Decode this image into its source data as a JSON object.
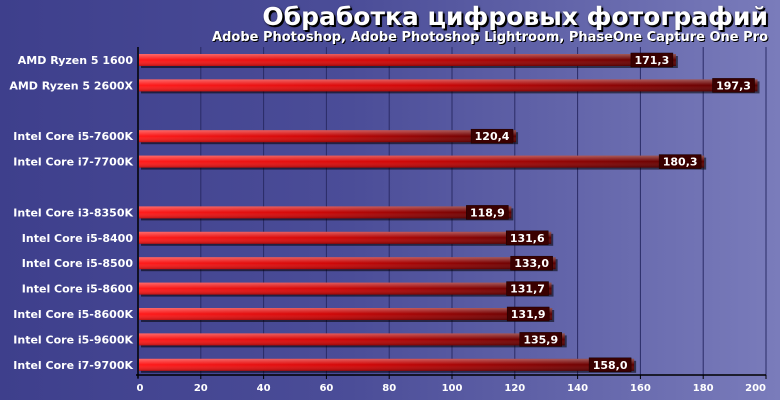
{
  "chart_data": {
    "type": "bar",
    "orientation": "horizontal",
    "title": "Обработка цифровых фотографий",
    "subtitle": "Adobe Photoshop, Adobe Photoshop Lightroom, PhaseOne Capture One Pro",
    "xlabel": "",
    "ylabel": "",
    "xlim": [
      0,
      200
    ],
    "x_ticks": [
      0,
      20,
      40,
      60,
      80,
      100,
      120,
      140,
      160,
      180,
      200
    ],
    "grid": true,
    "groups": [
      {
        "categories": [
          "AMD Ryzen 5 1600",
          "AMD Ryzen 5 2600X"
        ],
        "values": [
          171.3,
          197.3
        ],
        "labels": [
          "171,3",
          "197,3"
        ]
      },
      {
        "categories": [
          "Intel Core i5-7600K",
          "Intel Core i7-7700K"
        ],
        "values": [
          120.4,
          180.3
        ],
        "labels": [
          "120,4",
          "180,3"
        ]
      },
      {
        "categories": [
          "Intel Core i3-8350K",
          "Intel Core i5-8400",
          "Intel Core i5-8500",
          "Intel Core i5-8600",
          "Intel Core i5-8600K",
          "Intel Core i5-9600K",
          "Intel Core i7-9700K"
        ],
        "values": [
          118.9,
          131.6,
          133.0,
          131.7,
          131.9,
          135.9,
          158.0
        ],
        "labels": [
          "118,9",
          "131,6",
          "133,0",
          "131,7",
          "131,9",
          "135,9",
          "158,0"
        ]
      }
    ],
    "colors": {
      "bar_start": "#ff1a1a",
      "bar_end": "#5a0000",
      "background_start": "#3e3f8c",
      "background_end": "#7a7cbb",
      "grid": "#2a2b66",
      "label_box": "#3a0000"
    }
  }
}
